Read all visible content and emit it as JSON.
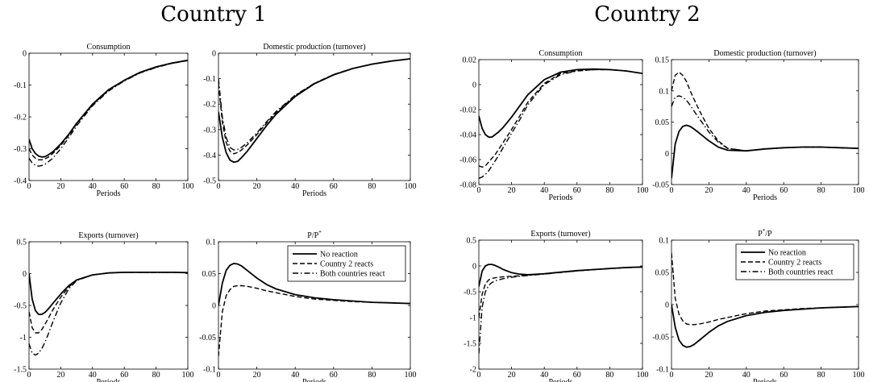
{
  "countries": [
    "Country 1",
    "Country 2"
  ],
  "panel_titles": {
    "consumption": "Consumption",
    "production": "Domestic production (turnover)",
    "exports": "Exports (turnover)",
    "price_ratio_1": "P/P*",
    "price_ratio_2": "P*/P"
  },
  "xlabel": "Periods",
  "legend": [
    "No reaction",
    "Country 2 reacts",
    "Both countries react"
  ],
  "line_styles": [
    "solid",
    "dashed",
    "dashdot"
  ],
  "chart_data": [
    {
      "type": "line",
      "panel": "country1-consumption",
      "title": "Consumption",
      "xlabel": "Periods",
      "xlim": [
        0,
        100
      ],
      "ylim": [
        -0.4,
        0
      ],
      "xticks": [
        0,
        20,
        40,
        60,
        80,
        100
      ],
      "yticks": [
        -0.4,
        -0.3,
        -0.2,
        -0.1,
        0
      ],
      "x": [
        0,
        2,
        4,
        6,
        8,
        10,
        12,
        15,
        20,
        25,
        30,
        40,
        50,
        60,
        70,
        80,
        90,
        100
      ],
      "series": [
        {
          "name": "No reaction",
          "style": "solid",
          "values": [
            -0.27,
            -0.3,
            -0.315,
            -0.323,
            -0.326,
            -0.325,
            -0.32,
            -0.31,
            -0.285,
            -0.255,
            -0.22,
            -0.16,
            -0.115,
            -0.085,
            -0.06,
            -0.043,
            -0.031,
            -0.022
          ]
        },
        {
          "name": "Country 2 reacts",
          "style": "dashed",
          "values": [
            -0.3,
            -0.32,
            -0.33,
            -0.335,
            -0.335,
            -0.332,
            -0.327,
            -0.315,
            -0.29,
            -0.258,
            -0.222,
            -0.162,
            -0.117,
            -0.086,
            -0.061,
            -0.044,
            -0.032,
            -0.023
          ]
        },
        {
          "name": "Both countries react",
          "style": "dashdot",
          "values": [
            -0.33,
            -0.345,
            -0.352,
            -0.355,
            -0.353,
            -0.349,
            -0.342,
            -0.33,
            -0.3,
            -0.265,
            -0.228,
            -0.165,
            -0.119,
            -0.087,
            -0.062,
            -0.045,
            -0.032,
            -0.023
          ]
        }
      ]
    },
    {
      "type": "line",
      "panel": "country1-production",
      "title": "Domestic production (turnover)",
      "xlabel": "Periods",
      "xlim": [
        0,
        100
      ],
      "ylim": [
        -0.5,
        0
      ],
      "xticks": [
        0,
        20,
        40,
        60,
        80,
        100
      ],
      "yticks": [
        -0.5,
        -0.4,
        -0.3,
        -0.2,
        -0.1,
        0
      ],
      "x": [
        0,
        2,
        4,
        6,
        8,
        10,
        12,
        15,
        20,
        25,
        30,
        40,
        50,
        60,
        70,
        80,
        90,
        100
      ],
      "series": [
        {
          "name": "No reaction",
          "style": "solid",
          "values": [
            -0.23,
            -0.33,
            -0.39,
            -0.42,
            -0.428,
            -0.425,
            -0.41,
            -0.385,
            -0.335,
            -0.285,
            -0.24,
            -0.17,
            -0.12,
            -0.085,
            -0.06,
            -0.043,
            -0.031,
            -0.022
          ]
        },
        {
          "name": "Country 2 reacts",
          "style": "dashed",
          "values": [
            -0.12,
            -0.27,
            -0.35,
            -0.385,
            -0.395,
            -0.39,
            -0.38,
            -0.36,
            -0.32,
            -0.275,
            -0.233,
            -0.167,
            -0.119,
            -0.084,
            -0.06,
            -0.043,
            -0.031,
            -0.022
          ]
        },
        {
          "name": "Both countries react",
          "style": "dashdot",
          "values": [
            -0.1,
            -0.25,
            -0.33,
            -0.37,
            -0.38,
            -0.378,
            -0.37,
            -0.352,
            -0.313,
            -0.27,
            -0.229,
            -0.165,
            -0.118,
            -0.084,
            -0.06,
            -0.043,
            -0.031,
            -0.022
          ]
        }
      ]
    },
    {
      "type": "line",
      "panel": "country1-exports",
      "title": "Exports (turnover)",
      "xlabel": "Periods",
      "xlim": [
        0,
        100
      ],
      "ylim": [
        -1.5,
        0.5
      ],
      "xticks": [
        0,
        20,
        40,
        60,
        80,
        100
      ],
      "yticks": [
        -1.5,
        -1,
        -0.5,
        0,
        0.5
      ],
      "x": [
        0,
        2,
        4,
        6,
        8,
        10,
        12,
        15,
        20,
        25,
        30,
        40,
        50,
        60,
        70,
        80,
        90,
        100
      ],
      "series": [
        {
          "name": "No reaction",
          "style": "solid",
          "values": [
            0,
            -0.4,
            -0.58,
            -0.64,
            -0.64,
            -0.61,
            -0.56,
            -0.47,
            -0.32,
            -0.19,
            -0.1,
            -0.02,
            0.01,
            0.02,
            0.02,
            0.02,
            0.02,
            0.015
          ]
        },
        {
          "name": "Country 2 reacts",
          "style": "dashed",
          "values": [
            -0.6,
            -0.85,
            -0.93,
            -0.93,
            -0.88,
            -0.8,
            -0.71,
            -0.57,
            -0.37,
            -0.21,
            -0.1,
            -0.02,
            0.01,
            0.02,
            0.02,
            0.02,
            0.02,
            0.015
          ]
        },
        {
          "name": "Both countries react",
          "style": "dashdot",
          "values": [
            -1.1,
            -1.25,
            -1.28,
            -1.25,
            -1.18,
            -1.08,
            -0.96,
            -0.76,
            -0.46,
            -0.24,
            -0.11,
            -0.02,
            0.01,
            0.02,
            0.02,
            0.02,
            0.02,
            0.015
          ]
        }
      ]
    },
    {
      "type": "line",
      "panel": "country1-price",
      "title": "P/P*",
      "xlabel": "Periods",
      "xlim": [
        0,
        100
      ],
      "ylim": [
        -0.1,
        0.1
      ],
      "xticks": [
        0,
        20,
        40,
        60,
        80,
        100
      ],
      "yticks": [
        -0.1,
        -0.05,
        0,
        0.05,
        0.1
      ],
      "legend_position": "top-right",
      "x": [
        0,
        2,
        4,
        6,
        8,
        10,
        12,
        15,
        20,
        25,
        30,
        40,
        50,
        60,
        70,
        80,
        90,
        100
      ],
      "series": [
        {
          "name": "No reaction",
          "style": "solid",
          "values": [
            0,
            0.035,
            0.055,
            0.063,
            0.066,
            0.065,
            0.062,
            0.055,
            0.043,
            0.033,
            0.026,
            0.017,
            0.012,
            0.009,
            0.007,
            0.005,
            0.004,
            0.003
          ]
        },
        {
          "name": "Country 2 reacts",
          "style": "dashed",
          "values": [
            -0.08,
            -0.01,
            0.015,
            0.025,
            0.03,
            0.031,
            0.031,
            0.03,
            0.027,
            0.023,
            0.02,
            0.014,
            0.01,
            0.008,
            0.006,
            0.005,
            0.004,
            0.003
          ]
        }
      ]
    },
    {
      "type": "line",
      "panel": "country2-consumption",
      "title": "Consumption",
      "xlabel": "Periods",
      "xlim": [
        0,
        100
      ],
      "ylim": [
        -0.08,
        0.02
      ],
      "xticks": [
        0,
        20,
        40,
        60,
        80,
        100
      ],
      "yticks": [
        -0.08,
        -0.06,
        -0.04,
        -0.02,
        0,
        0.02
      ],
      "x": [
        0,
        2,
        4,
        6,
        8,
        10,
        12,
        15,
        20,
        25,
        30,
        40,
        50,
        60,
        70,
        80,
        90,
        100
      ],
      "series": [
        {
          "name": "No reaction",
          "style": "solid",
          "values": [
            -0.025,
            -0.035,
            -0.04,
            -0.042,
            -0.042,
            -0.04,
            -0.038,
            -0.034,
            -0.026,
            -0.017,
            -0.008,
            0.004,
            0.01,
            0.012,
            0.0125,
            0.012,
            0.011,
            0.009
          ]
        },
        {
          "name": "Country 2 reacts",
          "style": "dashed",
          "values": [
            -0.065,
            -0.066,
            -0.065,
            -0.062,
            -0.059,
            -0.056,
            -0.052,
            -0.046,
            -0.036,
            -0.025,
            -0.014,
            0.001,
            0.009,
            0.011,
            0.012,
            0.012,
            0.011,
            0.009
          ]
        },
        {
          "name": "Both countries react",
          "style": "dashdot",
          "values": [
            -0.075,
            -0.074,
            -0.072,
            -0.069,
            -0.065,
            -0.061,
            -0.057,
            -0.05,
            -0.039,
            -0.028,
            -0.016,
            0,
            0.008,
            0.011,
            0.012,
            0.012,
            0.011,
            0.009
          ]
        }
      ]
    },
    {
      "type": "line",
      "panel": "country2-production",
      "title": "Domestic production (turnover)",
      "xlabel": "Periods",
      "xlim": [
        0,
        100
      ],
      "ylim": [
        -0.05,
        0.15
      ],
      "xticks": [
        0,
        20,
        40,
        60,
        80,
        100
      ],
      "yticks": [
        -0.05,
        0,
        0.05,
        0.1,
        0.15
      ],
      "x": [
        0,
        2,
        4,
        6,
        8,
        10,
        12,
        15,
        20,
        25,
        30,
        40,
        50,
        60,
        70,
        80,
        90,
        100
      ],
      "series": [
        {
          "name": "No reaction",
          "style": "solid",
          "values": [
            -0.04,
            0.015,
            0.035,
            0.043,
            0.045,
            0.043,
            0.039,
            0.032,
            0.02,
            0.01,
            0.005,
            0.004,
            0.007,
            0.009,
            0.01,
            0.01,
            0.009,
            0.008
          ]
        },
        {
          "name": "Country 2 reacts",
          "style": "dashed",
          "values": [
            0.1,
            0.125,
            0.13,
            0.125,
            0.115,
            0.1,
            0.087,
            0.068,
            0.04,
            0.02,
            0.008,
            0.004,
            0.007,
            0.009,
            0.01,
            0.01,
            0.009,
            0.008
          ]
        },
        {
          "name": "Both countries react",
          "style": "dashdot",
          "values": [
            0.075,
            0.09,
            0.092,
            0.09,
            0.085,
            0.077,
            0.068,
            0.055,
            0.034,
            0.018,
            0.008,
            0.004,
            0.007,
            0.009,
            0.01,
            0.01,
            0.009,
            0.008
          ]
        }
      ]
    },
    {
      "type": "line",
      "panel": "country2-exports",
      "title": "Exports (turnover)",
      "xlabel": "Periods",
      "xlim": [
        0,
        100
      ],
      "ylim": [
        -2,
        0.5
      ],
      "xticks": [
        0,
        20,
        40,
        60,
        80,
        100
      ],
      "yticks": [
        -2,
        -1.5,
        -1,
        -0.5,
        0,
        0.5
      ],
      "x": [
        0,
        2,
        4,
        6,
        8,
        10,
        12,
        15,
        20,
        25,
        30,
        40,
        50,
        60,
        70,
        80,
        90,
        100
      ],
      "series": [
        {
          "name": "No reaction",
          "style": "solid",
          "values": [
            -0.4,
            -0.1,
            0.0,
            0.03,
            0.03,
            0.01,
            -0.02,
            -0.07,
            -0.13,
            -0.16,
            -0.17,
            -0.15,
            -0.12,
            -0.09,
            -0.07,
            -0.05,
            -0.03,
            -0.02
          ]
        },
        {
          "name": "Country 2 reacts",
          "style": "dashed",
          "values": [
            -1.0,
            -0.55,
            -0.35,
            -0.27,
            -0.24,
            -0.23,
            -0.22,
            -0.21,
            -0.2,
            -0.19,
            -0.18,
            -0.155,
            -0.125,
            -0.095,
            -0.07,
            -0.05,
            -0.035,
            -0.02
          ]
        },
        {
          "name": "Both countries react",
          "style": "dashdot",
          "values": [
            -1.7,
            -0.8,
            -0.5,
            -0.38,
            -0.32,
            -0.29,
            -0.27,
            -0.245,
            -0.22,
            -0.2,
            -0.185,
            -0.158,
            -0.127,
            -0.096,
            -0.071,
            -0.05,
            -0.035,
            -0.02
          ]
        }
      ]
    },
    {
      "type": "line",
      "panel": "country2-price",
      "title": "P*/P",
      "xlabel": "Periods",
      "xlim": [
        0,
        100
      ],
      "ylim": [
        -0.1,
        0.1
      ],
      "xticks": [
        0,
        20,
        40,
        60,
        80,
        100
      ],
      "yticks": [
        -0.1,
        -0.05,
        0,
        0.05,
        0.1
      ],
      "legend_position": "top-right",
      "x": [
        0,
        2,
        4,
        6,
        8,
        10,
        12,
        15,
        20,
        25,
        30,
        40,
        50,
        60,
        70,
        80,
        90,
        100
      ],
      "series": [
        {
          "name": "No reaction",
          "style": "solid",
          "values": [
            0,
            -0.035,
            -0.055,
            -0.063,
            -0.066,
            -0.065,
            -0.062,
            -0.055,
            -0.043,
            -0.033,
            -0.026,
            -0.017,
            -0.012,
            -0.009,
            -0.007,
            -0.005,
            -0.004,
            -0.003
          ]
        },
        {
          "name": "Country 2 reacts",
          "style": "dashed",
          "values": [
            0.08,
            0.01,
            -0.015,
            -0.025,
            -0.03,
            -0.031,
            -0.031,
            -0.03,
            -0.027,
            -0.023,
            -0.02,
            -0.014,
            -0.01,
            -0.008,
            -0.006,
            -0.005,
            -0.004,
            -0.003
          ]
        }
      ]
    }
  ]
}
